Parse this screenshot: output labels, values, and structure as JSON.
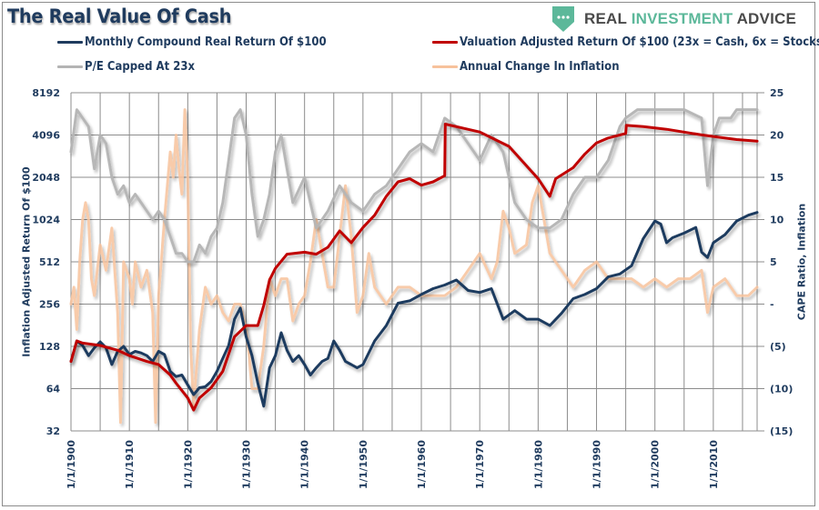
{
  "header": {
    "title": "The Real Value Of Cash",
    "logo": {
      "icon": "shield-dots-icon",
      "brand_left": "REAL",
      "brand_mid": "INVESTMENT",
      "brand_right": "ADVICE",
      "accent": "#5cb89a"
    }
  },
  "legend": [
    {
      "label": "Monthly Compound Real Return Of $100",
      "color": "#1f3b5e"
    },
    {
      "label": "Valuation Adjusted Return Of $100 (23x = Cash, 6x = Stocks)",
      "color": "#c00000"
    },
    {
      "label": "P/E Capped At 23x",
      "color": "#b4b4b4"
    },
    {
      "label": "Annual Change In Inflation",
      "color": "#f7c29c"
    }
  ],
  "chart_data": {
    "type": "line",
    "title": "The Real Value Of Cash",
    "xlabel": "",
    "ylabel": "Inflation Adjusted Return Of $100",
    "y2label": "CAPE Ratio, Inflation",
    "x_tick_labels": [
      "1/1/1900",
      "1/1/1910",
      "1/1/1920",
      "1/1/1930",
      "1/1/1940",
      "1/1/1950",
      "1/1/1960",
      "1/1/1970",
      "1/1/1980",
      "1/1/1990",
      "1/1/2000",
      "1/1/2010"
    ],
    "xlim": [
      1900,
      2017.5
    ],
    "y_left": {
      "scale": "log2",
      "range": [
        32,
        8192
      ],
      "ticks": [
        "32",
        "64",
        "128",
        "256",
        "512",
        "1024",
        "2048",
        "4096",
        "8192"
      ]
    },
    "y_right": {
      "scale": "linear",
      "range": [
        -15,
        25
      ],
      "ticks": [
        "(15)",
        "(10)",
        "(5)",
        "-",
        "5",
        "10",
        "15",
        "20",
        "25"
      ]
    },
    "grid": true,
    "legend_position": "top",
    "series": [
      {
        "name": "Monthly Compound Real Return Of $100",
        "axis": "left",
        "color": "#1f3b5e",
        "x": [
          1900,
          1901,
          1902,
          1903,
          1904,
          1905,
          1906,
          1907,
          1908,
          1909,
          1910,
          1911,
          1912,
          1913,
          1914,
          1915,
          1916,
          1917,
          1918,
          1919,
          1920,
          1921,
          1922,
          1923,
          1924,
          1925,
          1926,
          1927,
          1928,
          1929,
          1930,
          1931,
          1932,
          1933,
          1934,
          1935,
          1936,
          1937,
          1938,
          1939,
          1940,
          1941,
          1942,
          1943,
          1944,
          1945,
          1946,
          1947,
          1948,
          1949,
          1950,
          1952,
          1954,
          1956,
          1958,
          1960,
          1962,
          1964,
          1966,
          1968,
          1970,
          1972,
          1974,
          1976,
          1978,
          1980,
          1982,
          1984,
          1986,
          1988,
          1990,
          1992,
          1994,
          1996,
          1998,
          2000,
          2001,
          2002,
          2003,
          2005,
          2007,
          2008,
          2009,
          2010,
          2012,
          2014,
          2016,
          2017.5
        ],
        "values": [
          100,
          140,
          130,
          110,
          125,
          138,
          125,
          95,
          118,
          128,
          112,
          118,
          115,
          110,
          100,
          118,
          112,
          85,
          78,
          80,
          68,
          58,
          65,
          66,
          72,
          85,
          105,
          130,
          200,
          240,
          150,
          110,
          70,
          48,
          90,
          110,
          160,
          120,
          100,
          110,
          95,
          80,
          90,
          100,
          105,
          140,
          120,
          100,
          95,
          90,
          95,
          140,
          180,
          260,
          270,
          300,
          330,
          350,
          380,
          320,
          310,
          330,
          200,
          230,
          200,
          200,
          180,
          220,
          280,
          300,
          330,
          400,
          420,
          480,
          750,
          1000,
          950,
          700,
          760,
          820,
          900,
          600,
          550,
          700,
          800,
          1000,
          1100,
          1150
        ]
      },
      {
        "name": "Valuation Adjusted Return Of $100 (23x = Cash, 6x = Stocks)",
        "axis": "left",
        "color": "#c00000",
        "x": [
          1900,
          1901,
          1902,
          1905,
          1908,
          1910,
          1913,
          1915,
          1917,
          1918,
          1920,
          1921,
          1922,
          1924,
          1926,
          1928,
          1930,
          1932,
          1933,
          1934,
          1935,
          1937,
          1940,
          1942,
          1944,
          1946,
          1948,
          1950,
          1952,
          1954,
          1956,
          1958,
          1960,
          1962,
          1964,
          1964.1,
          1966,
          1970,
          1975,
          1980,
          1982,
          1983,
          1986,
          1988,
          1990,
          1992,
          1995,
          1995.1,
          1998,
          2002,
          2008,
          2010,
          2014,
          2017.5
        ],
        "values": [
          100,
          140,
          135,
          130,
          120,
          110,
          100,
          95,
          80,
          70,
          55,
          45,
          55,
          65,
          85,
          150,
          180,
          180,
          250,
          380,
          460,
          580,
          600,
          580,
          650,
          850,
          700,
          900,
          1100,
          1500,
          1900,
          2000,
          1800,
          1900,
          2100,
          4900,
          4700,
          4300,
          3400,
          2000,
          1500,
          2000,
          2400,
          3000,
          3600,
          3900,
          4200,
          4800,
          4700,
          4500,
          4100,
          4000,
          3800,
          3700
        ]
      },
      {
        "name": "P/E Capped At 23x",
        "axis": "right",
        "color": "#b4b4b4",
        "x": [
          1900,
          1901,
          1902,
          1903,
          1904,
          1905,
          1906,
          1907,
          1908,
          1909,
          1910,
          1911,
          1912,
          1913,
          1914,
          1915,
          1916,
          1917,
          1918,
          1919,
          1920,
          1921,
          1922,
          1923,
          1924,
          1925,
          1926,
          1927,
          1928,
          1929,
          1930,
          1931,
          1932,
          1933,
          1934,
          1935,
          1936,
          1937,
          1938,
          1940,
          1942,
          1944,
          1946,
          1948,
          1950,
          1952,
          1954,
          1956,
          1958,
          1960,
          1962,
          1964,
          1966,
          1968,
          1970,
          1972,
          1974,
          1976,
          1978,
          1980,
          1982,
          1984,
          1986,
          1988,
          1990,
          1992,
          1994,
          1995,
          1997,
          2000,
          2002,
          2005,
          2008,
          2009,
          2010,
          2011,
          2013,
          2014,
          2017.5
        ],
        "values": [
          18,
          23,
          22,
          21,
          16,
          20,
          19,
          15,
          13,
          14,
          12,
          13,
          12,
          11,
          10,
          11,
          10,
          8,
          6,
          6,
          5,
          5,
          7,
          6,
          8,
          9,
          12,
          17,
          22,
          23,
          20,
          13,
          8,
          10,
          13,
          18,
          20,
          16,
          12,
          15,
          9,
          11,
          14,
          12,
          11,
          13,
          14,
          16,
          18,
          19,
          18,
          22,
          21,
          19,
          17,
          20,
          18,
          12,
          10,
          9,
          9,
          10,
          13,
          15,
          15,
          17,
          21,
          22,
          23,
          23,
          23,
          23,
          22,
          14,
          20,
          22,
          22,
          23,
          23
        ]
      },
      {
        "name": "Annual Change In Inflation",
        "axis": "right",
        "color": "#f7c29c",
        "x": [
          1900,
          1900.5,
          1901,
          1901.5,
          1902,
          1902.5,
          1903,
          1903.5,
          1904,
          1905,
          1906,
          1907,
          1908,
          1908.5,
          1909,
          1910,
          1910.5,
          1911,
          1912,
          1913,
          1914,
          1914.5,
          1915,
          1916,
          1917,
          1917.5,
          1918,
          1918.5,
          1919,
          1919.5,
          1920,
          1920.5,
          1921,
          1922,
          1923,
          1924,
          1925,
          1926,
          1927,
          1928,
          1929,
          1930,
          1930.5,
          1931,
          1932,
          1933,
          1934,
          1935,
          1936,
          1937,
          1938,
          1939,
          1940,
          1941,
          1942,
          1943,
          1944,
          1945,
          1946,
          1947,
          1948,
          1949,
          1950,
          1951,
          1952,
          1954,
          1956,
          1958,
          1960,
          1962,
          1964,
          1966,
          1968,
          1970,
          1972,
          1973,
          1974,
          1975,
          1976,
          1978,
          1979,
          1980,
          1982,
          1984,
          1986,
          1988,
          1990,
          1992,
          1994,
          1996,
          1998,
          2000,
          2002,
          2004,
          2006,
          2008,
          2009,
          2010,
          2012,
          2014,
          2016,
          2017.5
        ],
        "values": [
          0,
          2,
          -3,
          5,
          10,
          12,
          10,
          3,
          1,
          7,
          4,
          9,
          -1,
          -14,
          5,
          3,
          0,
          5,
          2,
          4,
          -1,
          -14,
          1,
          10,
          18,
          15,
          20,
          16,
          13,
          23,
          15,
          -5,
          -12,
          -3,
          2,
          0,
          1,
          -1,
          -2,
          0,
          0,
          -3,
          -6,
          -10,
          -10,
          -5,
          3,
          1,
          3,
          3,
          -2,
          0,
          1,
          5,
          10,
          6,
          2,
          2,
          8,
          14,
          8,
          -1,
          1,
          6,
          2,
          0,
          2,
          2,
          1,
          1,
          1,
          2,
          4,
          6,
          3,
          5,
          11,
          9,
          6,
          7,
          12,
          14,
          6,
          4,
          2,
          4,
          5,
          3,
          3,
          3,
          2,
          3,
          2,
          3,
          3,
          4,
          -1,
          2,
          3,
          1,
          1,
          2
        ]
      }
    ]
  }
}
